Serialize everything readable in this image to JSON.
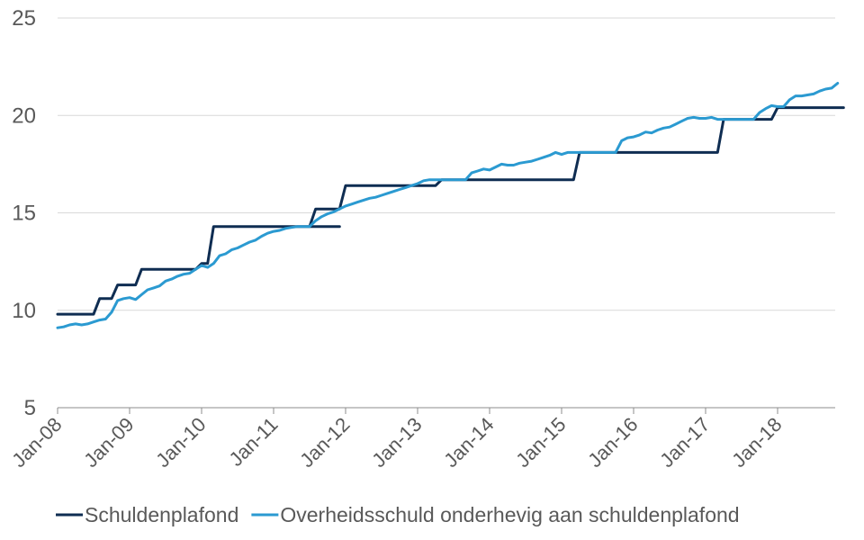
{
  "chart_data": {
    "type": "line",
    "title": "",
    "xlabel": "",
    "ylabel": "",
    "ylim": [
      5,
      25
    ],
    "y_ticks": [
      "5",
      "10",
      "15",
      "20",
      "25"
    ],
    "x_ticks": [
      "Jan-08",
      "Jan-09",
      "Jan-10",
      "Jan-11",
      "Jan-12",
      "Jan-13",
      "Jan-14",
      "Jan-15",
      "Jan-16",
      "Jan-17",
      "Jan-18"
    ],
    "grid": "horizontal",
    "legend_position": "bottom-left",
    "series": [
      {
        "name": "Schuldenplafond",
        "color": "#0f2d52",
        "points": [
          [
            "2008-01",
            9.8
          ],
          [
            "2008-07",
            9.8
          ],
          [
            "2008-08",
            10.6
          ],
          [
            "2008-10",
            10.6
          ],
          [
            "2008-11",
            11.3
          ],
          [
            "2009-02",
            11.3
          ],
          [
            "2009-03",
            12.1
          ],
          [
            "2009-12",
            12.1
          ],
          [
            "2010-01",
            12.4
          ],
          [
            "2010-02",
            12.4
          ],
          [
            "2010-03",
            14.3
          ],
          [
            "2011-12",
            14.3
          ],
          [
            "2011-07",
            14.3
          ],
          [
            "2011-08",
            15.2
          ],
          [
            "2011-12",
            15.2
          ],
          [
            "2012-01",
            16.4
          ],
          [
            "2013-04",
            16.4
          ],
          [
            "2013-05",
            16.7
          ],
          [
            "2015-03",
            16.7
          ],
          [
            "2015-04",
            18.1
          ],
          [
            "2017-03",
            18.1
          ],
          [
            "2017-04",
            19.8
          ],
          [
            "2017-12",
            19.8
          ],
          [
            "2018-01",
            20.4
          ],
          [
            "2018-12",
            20.4
          ]
        ]
      },
      {
        "name": "Overheidsschuld onderhevig aan schuldenplafond",
        "color": "#2b9ad1",
        "points": [
          [
            "2008-01",
            9.1
          ],
          [
            "2008-02",
            9.15
          ],
          [
            "2008-03",
            9.25
          ],
          [
            "2008-04",
            9.3
          ],
          [
            "2008-05",
            9.25
          ],
          [
            "2008-06",
            9.3
          ],
          [
            "2008-07",
            9.4
          ],
          [
            "2008-08",
            9.5
          ],
          [
            "2008-09",
            9.55
          ],
          [
            "2008-10",
            9.9
          ],
          [
            "2008-11",
            10.5
          ],
          [
            "2008-12",
            10.6
          ],
          [
            "2009-01",
            10.65
          ],
          [
            "2009-02",
            10.55
          ],
          [
            "2009-03",
            10.8
          ],
          [
            "2009-04",
            11.05
          ],
          [
            "2009-05",
            11.15
          ],
          [
            "2009-06",
            11.25
          ],
          [
            "2009-07",
            11.5
          ],
          [
            "2009-08",
            11.6
          ],
          [
            "2009-09",
            11.75
          ],
          [
            "2009-10",
            11.85
          ],
          [
            "2009-11",
            11.9
          ],
          [
            "2009-12",
            12.1
          ],
          [
            "2010-01",
            12.3
          ],
          [
            "2010-02",
            12.2
          ],
          [
            "2010-03",
            12.4
          ],
          [
            "2010-04",
            12.8
          ],
          [
            "2010-05",
            12.9
          ],
          [
            "2010-06",
            13.1
          ],
          [
            "2010-07",
            13.2
          ],
          [
            "2010-08",
            13.35
          ],
          [
            "2010-09",
            13.5
          ],
          [
            "2010-10",
            13.6
          ],
          [
            "2010-11",
            13.8
          ],
          [
            "2010-12",
            13.95
          ],
          [
            "2011-01",
            14.05
          ],
          [
            "2011-02",
            14.1
          ],
          [
            "2011-03",
            14.2
          ],
          [
            "2011-04",
            14.25
          ],
          [
            "2011-05",
            14.3
          ],
          [
            "2011-06",
            14.3
          ],
          [
            "2011-07",
            14.3
          ],
          [
            "2011-08",
            14.6
          ],
          [
            "2011-09",
            14.8
          ],
          [
            "2011-10",
            14.95
          ],
          [
            "2011-11",
            15.05
          ],
          [
            "2011-12",
            15.2
          ],
          [
            "2012-01",
            15.35
          ],
          [
            "2012-02",
            15.45
          ],
          [
            "2012-03",
            15.55
          ],
          [
            "2012-04",
            15.65
          ],
          [
            "2012-05",
            15.75
          ],
          [
            "2012-06",
            15.8
          ],
          [
            "2012-07",
            15.9
          ],
          [
            "2012-08",
            16.0
          ],
          [
            "2012-09",
            16.1
          ],
          [
            "2012-10",
            16.2
          ],
          [
            "2012-11",
            16.3
          ],
          [
            "2012-12",
            16.4
          ],
          [
            "2013-01",
            16.5
          ],
          [
            "2013-02",
            16.65
          ],
          [
            "2013-03",
            16.7
          ],
          [
            "2013-04",
            16.7
          ],
          [
            "2013-05",
            16.7
          ],
          [
            "2013-06",
            16.7
          ],
          [
            "2013-07",
            16.7
          ],
          [
            "2013-08",
            16.7
          ],
          [
            "2013-09",
            16.7
          ],
          [
            "2013-10",
            17.05
          ],
          [
            "2013-11",
            17.15
          ],
          [
            "2013-12",
            17.25
          ],
          [
            "2014-01",
            17.2
          ],
          [
            "2014-02",
            17.35
          ],
          [
            "2014-03",
            17.5
          ],
          [
            "2014-04",
            17.45
          ],
          [
            "2014-05",
            17.45
          ],
          [
            "2014-06",
            17.55
          ],
          [
            "2014-07",
            17.6
          ],
          [
            "2014-08",
            17.65
          ],
          [
            "2014-09",
            17.75
          ],
          [
            "2014-10",
            17.85
          ],
          [
            "2014-11",
            17.95
          ],
          [
            "2014-12",
            18.1
          ],
          [
            "2015-01",
            18.0
          ],
          [
            "2015-02",
            18.1
          ],
          [
            "2015-03",
            18.1
          ],
          [
            "2015-09",
            18.1
          ],
          [
            "2015-10",
            18.1
          ],
          [
            "2015-11",
            18.7
          ],
          [
            "2015-12",
            18.85
          ],
          [
            "2016-01",
            18.9
          ],
          [
            "2016-02",
            19.0
          ],
          [
            "2016-03",
            19.15
          ],
          [
            "2016-04",
            19.1
          ],
          [
            "2016-05",
            19.25
          ],
          [
            "2016-06",
            19.35
          ],
          [
            "2016-07",
            19.4
          ],
          [
            "2016-08",
            19.55
          ],
          [
            "2016-09",
            19.7
          ],
          [
            "2016-10",
            19.85
          ],
          [
            "2016-11",
            19.9
          ],
          [
            "2016-12",
            19.85
          ],
          [
            "2017-01",
            19.85
          ],
          [
            "2017-02",
            19.9
          ],
          [
            "2017-03",
            19.8
          ],
          [
            "2017-04",
            19.8
          ],
          [
            "2017-09",
            19.8
          ],
          [
            "2017-10",
            20.15
          ],
          [
            "2017-11",
            20.35
          ],
          [
            "2017-12",
            20.5
          ],
          [
            "2018-01",
            20.45
          ],
          [
            "2018-02",
            20.45
          ],
          [
            "2018-03",
            20.8
          ],
          [
            "2018-04",
            21.0
          ],
          [
            "2018-05",
            21.0
          ],
          [
            "2018-06",
            21.05
          ],
          [
            "2018-07",
            21.1
          ],
          [
            "2018-08",
            21.25
          ],
          [
            "2018-09",
            21.35
          ],
          [
            "2018-10",
            21.4
          ],
          [
            "2018-11",
            21.65
          ]
        ]
      }
    ]
  }
}
